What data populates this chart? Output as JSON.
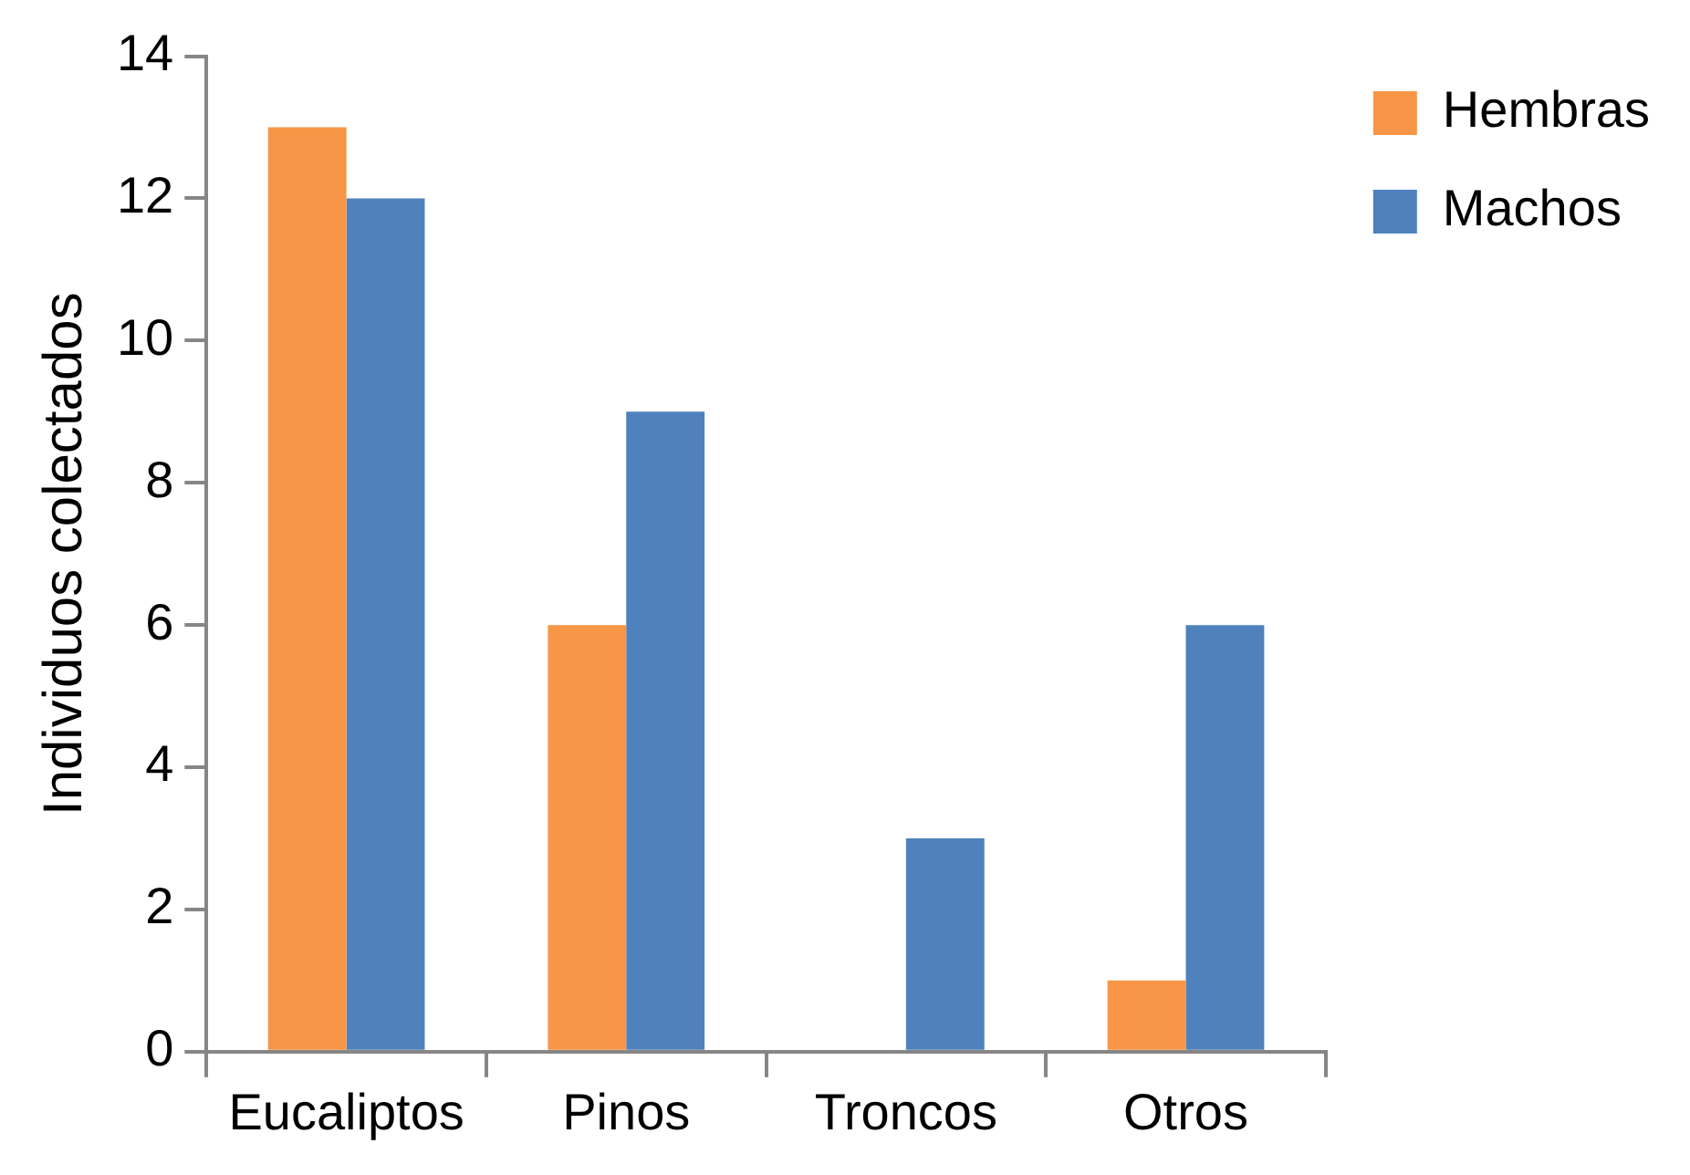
{
  "chart_data": {
    "type": "bar",
    "ylabel": "Individuos colectados",
    "categories": [
      "Eucaliptos",
      "Pinos",
      "Troncos",
      "Otros"
    ],
    "series": [
      {
        "name": "Hembras",
        "color": "#f79646",
        "values": [
          13,
          6,
          0,
          1
        ]
      },
      {
        "name": "Machos",
        "color": "#4f81bd",
        "values": [
          12,
          9,
          3,
          6
        ]
      }
    ],
    "ylim": [
      0,
      14
    ],
    "yticks": [
      0,
      2,
      4,
      6,
      8,
      10,
      12,
      14
    ],
    "grid": false,
    "legend": "top right"
  }
}
